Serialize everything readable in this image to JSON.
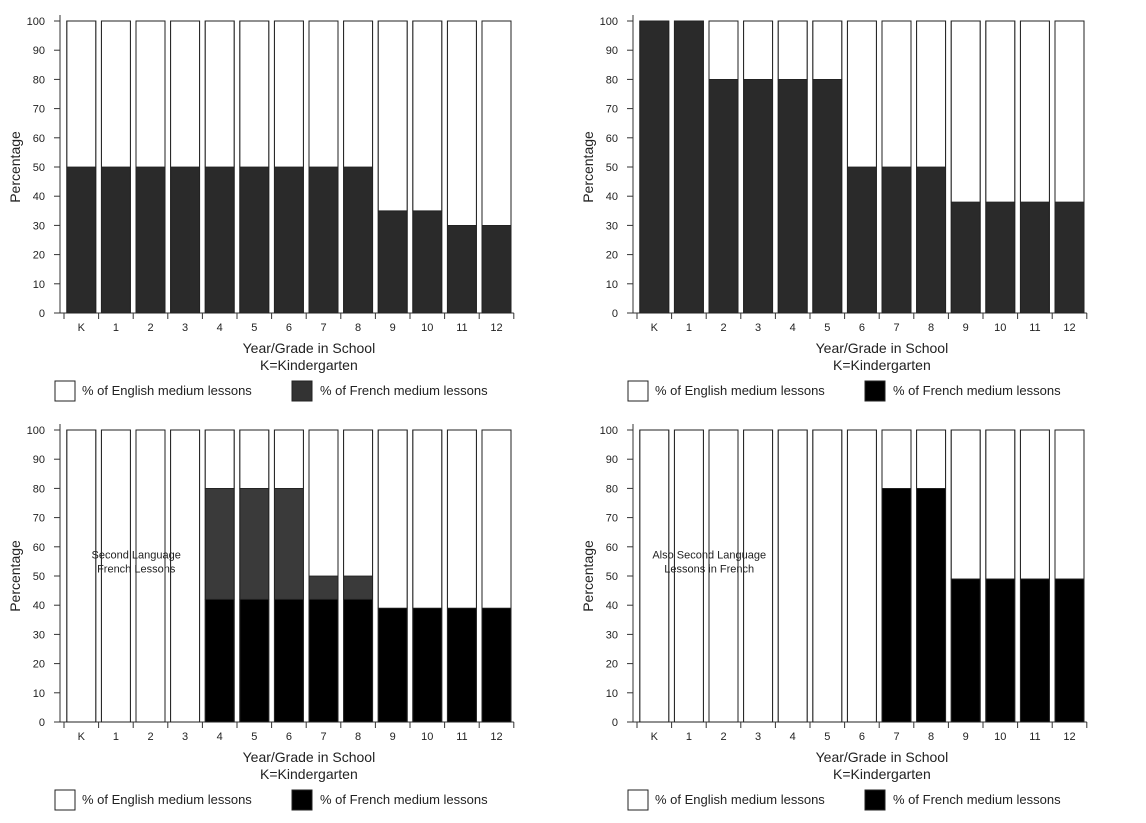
{
  "chart_data": [
    {
      "type": "bar",
      "stacked": true,
      "position": "top-left",
      "xlabel": "Year/Grade in School",
      "xlabel2": "K=Kindergarten",
      "ylabel": "Percentage",
      "ylim": [
        0,
        100
      ],
      "yticks": [
        0,
        10,
        20,
        30,
        40,
        50,
        60,
        70,
        80,
        90,
        100
      ],
      "categories": [
        "K",
        "1",
        "2",
        "3",
        "4",
        "5",
        "6",
        "7",
        "8",
        "9",
        "10",
        "11",
        "12"
      ],
      "series": [
        {
          "name": "% of French medium lessons",
          "color": "#2a2a2a",
          "values": [
            50,
            50,
            50,
            50,
            50,
            50,
            50,
            50,
            50,
            35,
            35,
            30,
            30
          ]
        },
        {
          "name": "% of English medium lessons",
          "color": "#ffffff",
          "values": [
            50,
            50,
            50,
            50,
            50,
            50,
            50,
            50,
            50,
            65,
            65,
            70,
            70
          ]
        }
      ],
      "legend": [
        {
          "label": "% of English medium lessons",
          "color": "#ffffff"
        },
        {
          "label": "% of French medium lessons",
          "color": "#333333"
        }
      ]
    },
    {
      "type": "bar",
      "stacked": true,
      "position": "top-right",
      "xlabel": "Year/Grade in School",
      "xlabel2": "K=Kindergarten",
      "ylabel": "Percentage",
      "ylim": [
        0,
        100
      ],
      "yticks": [
        0,
        10,
        20,
        30,
        40,
        50,
        60,
        70,
        80,
        90,
        100
      ],
      "categories": [
        "K",
        "1",
        "2",
        "3",
        "4",
        "5",
        "6",
        "7",
        "8",
        "9",
        "10",
        "11",
        "12"
      ],
      "series": [
        {
          "name": "% of French medium lessons",
          "color": "#2a2a2a",
          "values": [
            100,
            100,
            80,
            80,
            80,
            80,
            50,
            50,
            50,
            38,
            38,
            38,
            38
          ]
        },
        {
          "name": "% of English medium lessons",
          "color": "#ffffff",
          "values": [
            0,
            0,
            20,
            20,
            20,
            20,
            50,
            50,
            50,
            62,
            62,
            62,
            62
          ]
        }
      ],
      "legend": [
        {
          "label": "% of English medium lessons",
          "color": "#ffffff"
        },
        {
          "label": "% of French medium lessons",
          "color": "#000000"
        }
      ]
    },
    {
      "type": "bar",
      "stacked": true,
      "position": "bottom-left",
      "xlabel": "Year/Grade in School",
      "xlabel2": "K=Kindergarten",
      "ylabel": "Percentage",
      "ylim": [
        0,
        100
      ],
      "yticks": [
        0,
        10,
        20,
        30,
        40,
        50,
        60,
        70,
        80,
        90,
        100
      ],
      "categories": [
        "K",
        "1",
        "2",
        "3",
        "4",
        "5",
        "6",
        "7",
        "8",
        "9",
        "10",
        "11",
        "12"
      ],
      "annotation": [
        "Second Language",
        "French Lessons"
      ],
      "series": [
        {
          "name": "% of French medium lessons",
          "color": "#000000",
          "values": [
            0,
            0,
            0,
            0,
            42,
            42,
            42,
            42,
            42,
            39,
            39,
            39,
            39
          ]
        },
        {
          "name": "Second Language French Lessons",
          "color": "#3a3a3a",
          "values": [
            0,
            0,
            0,
            0,
            38,
            38,
            38,
            8,
            8,
            0,
            0,
            0,
            0
          ]
        },
        {
          "name": "% of English medium lessons",
          "color": "#ffffff",
          "values": [
            100,
            100,
            100,
            100,
            20,
            20,
            20,
            50,
            50,
            61,
            61,
            61,
            61
          ]
        }
      ],
      "legend": [
        {
          "label": "% of English medium lessons",
          "color": "#ffffff"
        },
        {
          "label": "% of French medium lessons",
          "color": "#000000"
        }
      ]
    },
    {
      "type": "bar",
      "stacked": true,
      "position": "bottom-right",
      "xlabel": "Year/Grade in School",
      "xlabel2": "K=Kindergarten",
      "ylabel": "Percentage",
      "ylim": [
        0,
        100
      ],
      "yticks": [
        0,
        10,
        20,
        30,
        40,
        50,
        60,
        70,
        80,
        90,
        100
      ],
      "categories": [
        "K",
        "1",
        "2",
        "3",
        "4",
        "5",
        "6",
        "7",
        "8",
        "9",
        "10",
        "11",
        "12"
      ],
      "annotation": [
        "Also Second Language",
        "Lessons in French"
      ],
      "series": [
        {
          "name": "% of French medium lessons",
          "color": "#000000",
          "values": [
            0,
            0,
            0,
            0,
            0,
            0,
            0,
            80,
            80,
            49,
            49,
            49,
            49
          ]
        },
        {
          "name": "% of English medium lessons",
          "color": "#ffffff",
          "values": [
            100,
            100,
            100,
            100,
            100,
            100,
            100,
            20,
            20,
            51,
            51,
            51,
            51
          ]
        }
      ],
      "legend": [
        {
          "label": "% of English medium lessons",
          "color": "#ffffff"
        },
        {
          "label": "% of French medium lessons",
          "color": "#000000"
        }
      ]
    }
  ]
}
